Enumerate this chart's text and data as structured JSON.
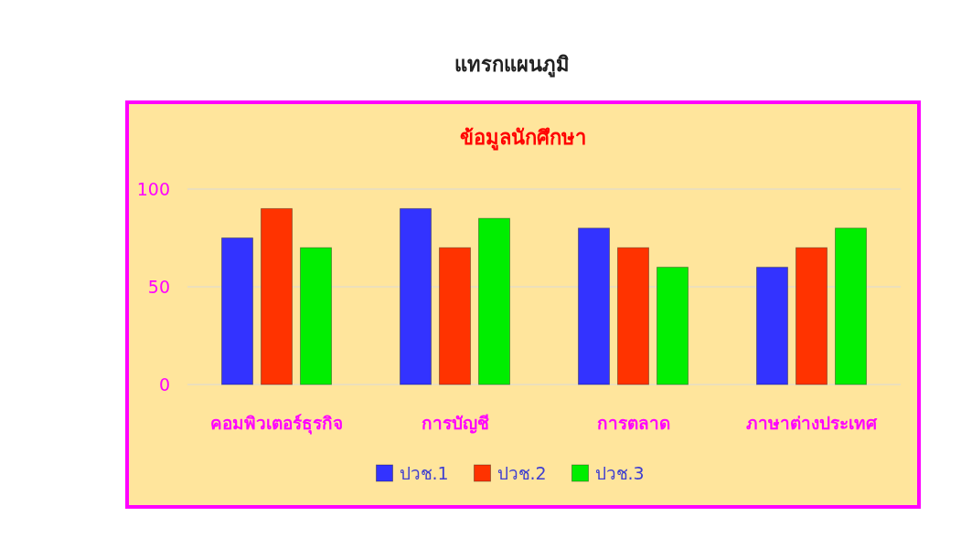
{
  "chart_data": {
    "type": "bar",
    "title": "ข้อมูลนักศึกษา",
    "annotations": [
      "แทรกแผนภูมิ"
    ],
    "categories": [
      "คอมพิวเตอร์ธุรกิจ",
      "การบัญชี",
      "การตลาด",
      "ภาษาต่างประเทศ"
    ],
    "series": [
      {
        "name": "ปวช.1",
        "color": "#3333ff",
        "values": [
          75,
          90,
          80,
          60
        ]
      },
      {
        "name": "ปวช.2",
        "color": "#ff3300",
        "values": [
          90,
          70,
          70,
          70
        ]
      },
      {
        "name": "ปวช.3",
        "color": "#00ee00",
        "values": [
          70,
          85,
          60,
          80
        ]
      }
    ],
    "ylim": [
      0,
      100
    ],
    "yticks": [
      0,
      50,
      100
    ],
    "grid": "y",
    "legend": "bottom"
  }
}
